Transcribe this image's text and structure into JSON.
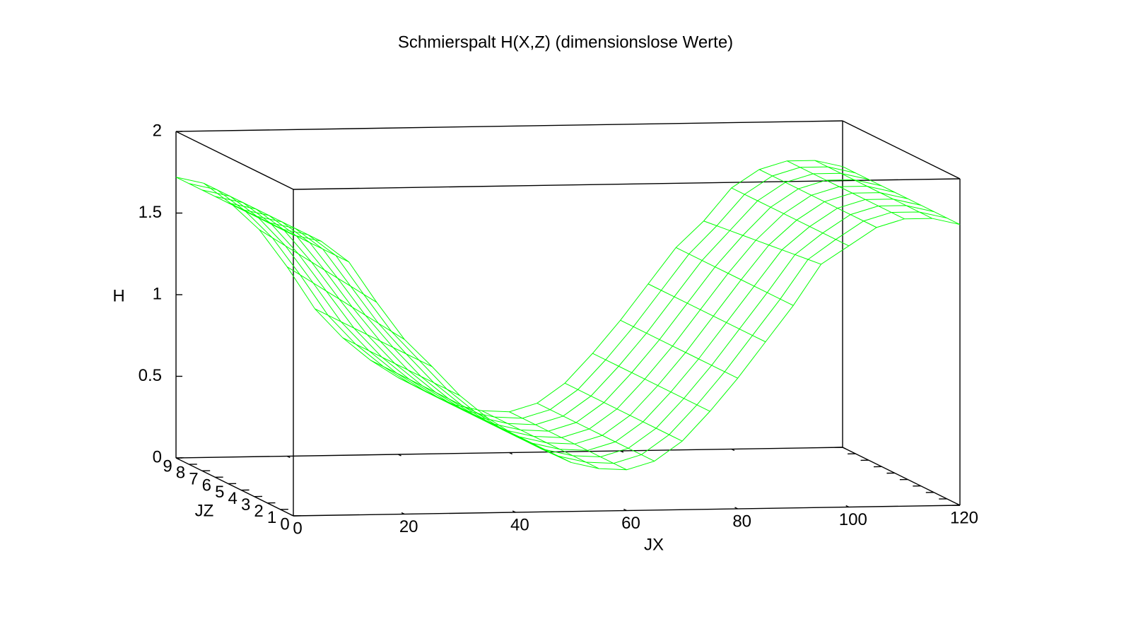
{
  "chart_data": {
    "type": "surface",
    "title": "Schmierspalt H(X,Z) (dimensionslose Werte)",
    "xlabel": "JX",
    "ylabel": "JZ",
    "zlabel": "H",
    "color": "#00ff00",
    "x": [
      0,
      5,
      10,
      15,
      20,
      25,
      30,
      35,
      40,
      45,
      50,
      55,
      60,
      65,
      70,
      75,
      80,
      85,
      90,
      95,
      100,
      105,
      110,
      115,
      120
    ],
    "y": [
      0,
      1,
      2,
      3,
      4,
      5,
      6,
      7,
      8,
      9
    ],
    "values": [
      [
        1.72,
        1.68,
        1.55,
        1.3,
        1.07,
        0.9,
        0.72,
        0.58,
        0.47,
        0.38,
        0.3,
        0.26,
        0.25,
        0.3,
        0.42,
        0.6,
        0.8,
        1.02,
        1.24,
        1.49,
        1.6,
        1.71,
        1.76,
        1.76,
        1.72
      ],
      [
        1.72,
        1.68,
        1.55,
        1.31,
        1.08,
        0.9,
        0.72,
        0.58,
        0.47,
        0.38,
        0.3,
        0.26,
        0.25,
        0.3,
        0.42,
        0.6,
        0.8,
        1.02,
        1.24,
        1.48,
        1.6,
        1.71,
        1.76,
        1.76,
        1.72
      ],
      [
        1.72,
        1.68,
        1.55,
        1.32,
        1.09,
        0.9,
        0.72,
        0.58,
        0.47,
        0.38,
        0.3,
        0.26,
        0.25,
        0.3,
        0.42,
        0.6,
        0.8,
        1.02,
        1.24,
        1.47,
        1.6,
        1.71,
        1.76,
        1.76,
        1.72
      ],
      [
        1.72,
        1.68,
        1.55,
        1.33,
        1.1,
        0.9,
        0.72,
        0.58,
        0.47,
        0.38,
        0.3,
        0.26,
        0.25,
        0.3,
        0.42,
        0.6,
        0.8,
        1.02,
        1.24,
        1.46,
        1.6,
        1.71,
        1.76,
        1.76,
        1.72
      ],
      [
        1.72,
        1.68,
        1.55,
        1.34,
        1.11,
        0.9,
        0.72,
        0.58,
        0.47,
        0.38,
        0.3,
        0.26,
        0.25,
        0.3,
        0.42,
        0.6,
        0.8,
        1.02,
        1.24,
        1.45,
        1.6,
        1.71,
        1.76,
        1.76,
        1.72
      ],
      [
        1.72,
        1.68,
        1.55,
        1.35,
        1.12,
        0.9,
        0.72,
        0.58,
        0.47,
        0.38,
        0.3,
        0.26,
        0.25,
        0.3,
        0.42,
        0.6,
        0.8,
        1.02,
        1.24,
        1.44,
        1.6,
        1.71,
        1.76,
        1.76,
        1.72
      ],
      [
        1.72,
        1.68,
        1.55,
        1.36,
        1.13,
        0.9,
        0.72,
        0.58,
        0.47,
        0.38,
        0.3,
        0.26,
        0.25,
        0.3,
        0.42,
        0.6,
        0.8,
        1.02,
        1.24,
        1.43,
        1.6,
        1.71,
        1.76,
        1.76,
        1.72
      ],
      [
        1.72,
        1.68,
        1.55,
        1.37,
        1.14,
        0.9,
        0.72,
        0.58,
        0.47,
        0.38,
        0.3,
        0.26,
        0.25,
        0.3,
        0.42,
        0.6,
        0.8,
        1.02,
        1.24,
        1.42,
        1.6,
        1.71,
        1.76,
        1.76,
        1.72
      ],
      [
        1.72,
        1.68,
        1.55,
        1.38,
        1.15,
        0.9,
        0.72,
        0.58,
        0.47,
        0.38,
        0.3,
        0.26,
        0.25,
        0.3,
        0.42,
        0.6,
        0.8,
        1.02,
        1.24,
        1.41,
        1.6,
        1.71,
        1.76,
        1.76,
        1.72
      ],
      [
        1.72,
        1.68,
        1.55,
        1.39,
        1.16,
        0.9,
        0.72,
        0.58,
        0.47,
        0.38,
        0.3,
        0.26,
        0.25,
        0.3,
        0.42,
        0.6,
        0.8,
        1.02,
        1.24,
        1.4,
        1.6,
        1.71,
        1.76,
        1.76,
        1.72
      ]
    ],
    "xlim": [
      0,
      120
    ],
    "xticks": [
      0,
      20,
      40,
      60,
      80,
      100,
      120
    ],
    "ylim": [
      0,
      9
    ],
    "yticks": [
      0,
      1,
      2,
      3,
      4,
      5,
      6,
      7,
      8,
      9
    ],
    "zlim": [
      0,
      2
    ],
    "zticks": [
      0,
      0.5,
      1,
      1.5,
      2
    ]
  }
}
